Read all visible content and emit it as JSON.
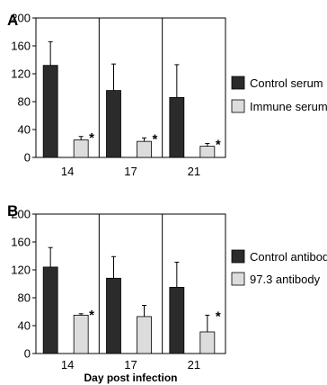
{
  "chart_data": [
    {
      "type": "bar",
      "panel_label": "A",
      "categories": [
        "14",
        "17",
        "21"
      ],
      "yticks": [
        "0",
        "40",
        "80",
        "120",
        "160",
        "200"
      ],
      "ylim": [
        0,
        200
      ],
      "xlabel": "",
      "series": [
        {
          "name": "Control serum",
          "color": "#2b2b2b",
          "values": [
            132,
            96,
            86
          ],
          "errors": [
            34,
            38,
            47
          ],
          "sig": [
            false,
            false,
            false
          ]
        },
        {
          "name": "Immune serum",
          "color": "#dcdcdc",
          "values": [
            25,
            23,
            16
          ],
          "errors": [
            5,
            5,
            4
          ],
          "sig": [
            true,
            true,
            true
          ]
        }
      ],
      "sig_marker": "*",
      "legend_position": "right"
    },
    {
      "type": "bar",
      "panel_label": "B",
      "categories": [
        "14",
        "17",
        "21"
      ],
      "yticks": [
        "0",
        "40",
        "80",
        "120",
        "160",
        "200"
      ],
      "ylim": [
        0,
        200
      ],
      "xlabel": "Day post infection",
      "series": [
        {
          "name": "Control antibody",
          "color": "#2b2b2b",
          "values": [
            124,
            108,
            95
          ],
          "errors": [
            28,
            31,
            36
          ],
          "sig": [
            false,
            false,
            false
          ]
        },
        {
          "name": "97.3 antibody",
          "color": "#dcdcdc",
          "values": [
            55,
            53,
            31
          ],
          "errors": [
            2,
            16,
            24
          ],
          "sig": [
            true,
            false,
            true
          ]
        }
      ],
      "sig_marker": "*",
      "legend_position": "right"
    }
  ]
}
